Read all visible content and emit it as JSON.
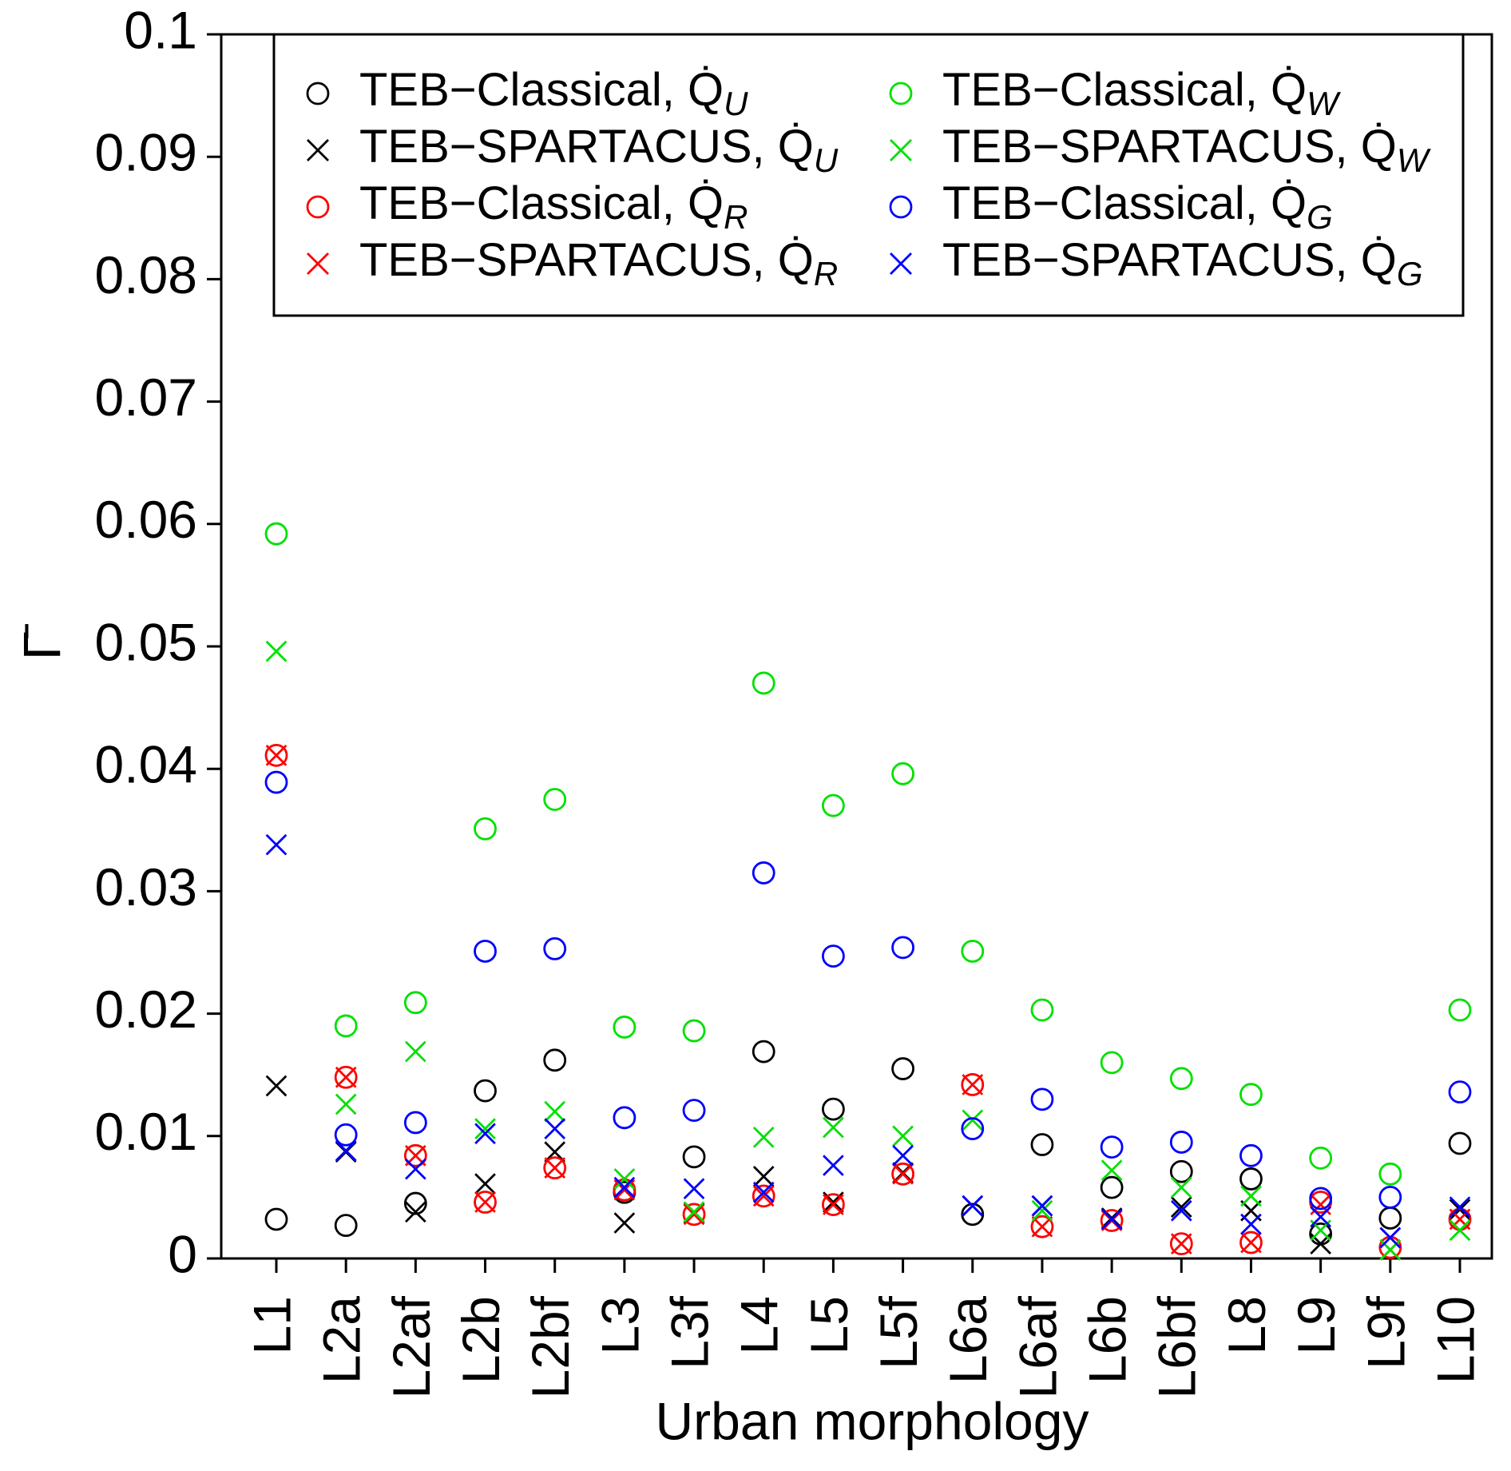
{
  "chart_data": {
    "type": "scatter",
    "x_label": "Urban morphology",
    "y_label": "Γ̄",
    "categories": [
      "L1",
      "L2a",
      "L2af",
      "L2b",
      "L2bf",
      "L3",
      "L3f",
      "L4",
      "L5",
      "L5f",
      "L6a",
      "L6af",
      "L6b",
      "L6bf",
      "L8",
      "L9",
      "L9f",
      "L10"
    ],
    "ylim": [
      0,
      0.1
    ],
    "yticks": [
      0,
      0.01,
      0.02,
      0.03,
      0.04,
      0.05,
      0.06,
      0.07,
      0.08,
      0.09,
      0.1
    ],
    "legend": "top",
    "series": [
      {
        "name": "TEB−Classical, Q̇U",
        "color": "#000000",
        "marker": "circle",
        "values": [
          0.0032,
          0.0027,
          0.0045,
          0.0137,
          0.0162,
          0.0054,
          0.0083,
          0.0169,
          0.0122,
          0.0155,
          0.0036,
          0.0093,
          0.0058,
          0.0071,
          0.0065,
          0.002,
          0.0033,
          0.0094
        ]
      },
      {
        "name": "TEB−SPARTACUS, Q̇U",
        "color": "#000000",
        "marker": "x",
        "values": [
          0.0141,
          0.0087,
          0.0038,
          0.0061,
          0.0087,
          0.0029,
          0.0037,
          0.0067,
          0.0046,
          0.007,
          0.0043,
          0.0043,
          0.0033,
          0.0042,
          0.0039,
          0.0012,
          0.0017,
          0.004
        ]
      },
      {
        "name": "TEB−Classical, Q̇R",
        "color": "#ff0000",
        "marker": "circle",
        "values": [
          0.0411,
          0.0148,
          0.0084,
          0.0046,
          0.0074,
          0.0056,
          0.0036,
          0.0051,
          0.0044,
          0.0069,
          0.0142,
          0.0026,
          0.0031,
          0.0012,
          0.0013,
          0.0046,
          0.0009,
          0.0032
        ]
      },
      {
        "name": "TEB−SPARTACUS, Q̇R",
        "color": "#ff0000",
        "marker": "x",
        "values": [
          0.0411,
          0.0148,
          0.0084,
          0.0046,
          0.0074,
          0.0056,
          0.0036,
          0.0051,
          0.0044,
          0.0069,
          0.0142,
          0.0026,
          0.0031,
          0.0012,
          0.0013,
          0.0044,
          0.0007,
          0.0032
        ]
      },
      {
        "name": "TEB−Classical, Q̇W",
        "color": "#00e000",
        "marker": "circle",
        "values": [
          0.0592,
          0.019,
          0.0209,
          0.0351,
          0.0375,
          0.0189,
          0.0186,
          0.047,
          0.037,
          0.0396,
          0.0251,
          0.0203,
          0.016,
          0.0147,
          0.0134,
          0.0082,
          0.0069,
          0.0203
        ]
      },
      {
        "name": "TEB−SPARTACUS, Q̇W",
        "color": "#00e000",
        "marker": "x",
        "values": [
          0.0496,
          0.0126,
          0.0169,
          0.0106,
          0.012,
          0.0065,
          0.0038,
          0.0099,
          0.0107,
          0.01,
          0.0113,
          0.0039,
          0.0072,
          0.0058,
          0.0051,
          0.0023,
          0.0007,
          0.0023
        ]
      },
      {
        "name": "TEB−Classical, Q̇G",
        "color": "#0000ff",
        "marker": "circle",
        "values": [
          0.0389,
          0.0101,
          0.0111,
          0.0251,
          0.0253,
          0.0115,
          0.0121,
          0.0315,
          0.0247,
          0.0254,
          0.0106,
          0.013,
          0.0091,
          0.0095,
          0.0084,
          0.0049,
          0.005,
          0.0136
        ]
      },
      {
        "name": "TEB−SPARTACUS, Q̇G",
        "color": "#0000ff",
        "marker": "x",
        "values": [
          0.0338,
          0.0088,
          0.0073,
          0.0102,
          0.0106,
          0.0058,
          0.0057,
          0.0054,
          0.0076,
          0.0084,
          0.0043,
          0.0043,
          0.0032,
          0.0039,
          0.0028,
          0.0034,
          0.0017,
          0.0042
        ]
      }
    ]
  }
}
